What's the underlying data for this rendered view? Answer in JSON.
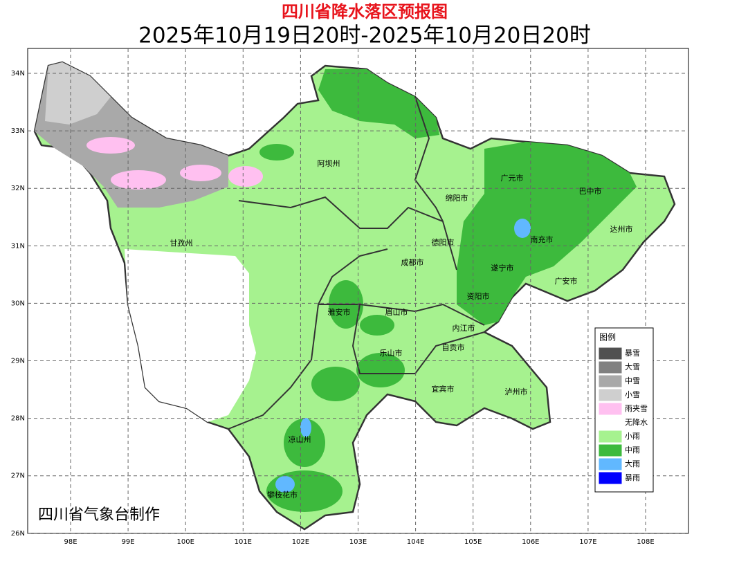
{
  "header": {
    "title": "四川省降水落区预报图",
    "subtitle": "2025年10月19日20时-2025年10月20日20时"
  },
  "map": {
    "lon_ticks": [
      "98E",
      "99E",
      "100E",
      "101E",
      "102E",
      "103E",
      "104E",
      "105E",
      "106E",
      "107E",
      "108E"
    ],
    "lat_ticks": [
      "34N",
      "33N",
      "32N",
      "31N",
      "30N",
      "29N",
      "28N",
      "27N",
      "26N"
    ],
    "labels": [
      "阿坝州",
      "广元市",
      "巴中市",
      "绵阳市",
      "达州市",
      "德阳市",
      "南充市",
      "甘孜州",
      "成都市",
      "遂宁市",
      "广安市",
      "资阳市",
      "雅安市",
      "眉山市",
      "内江市",
      "自贡市",
      "乐山市",
      "宜宾市",
      "泸州市",
      "凉山州",
      "攀枝花市"
    ]
  },
  "legend": {
    "title": "图例",
    "items": [
      {
        "label": "暴雪",
        "color": "#505050"
      },
      {
        "label": "大雪",
        "color": "#808080"
      },
      {
        "label": "中雪",
        "color": "#a9a9a9"
      },
      {
        "label": "小雪",
        "color": "#cfcfcf"
      },
      {
        "label": "雨夹雪",
        "color": "#ffc0f0"
      },
      {
        "label": "无降水",
        "color": "#ffffff"
      },
      {
        "label": "小雨",
        "color": "#a6f28f"
      },
      {
        "label": "中雨",
        "color": "#3dba3d"
      },
      {
        "label": "大雨",
        "color": "#61b8ff"
      },
      {
        "label": "暴雨",
        "color": "#0000fe"
      }
    ]
  },
  "credit": "四川省气象台制作"
}
